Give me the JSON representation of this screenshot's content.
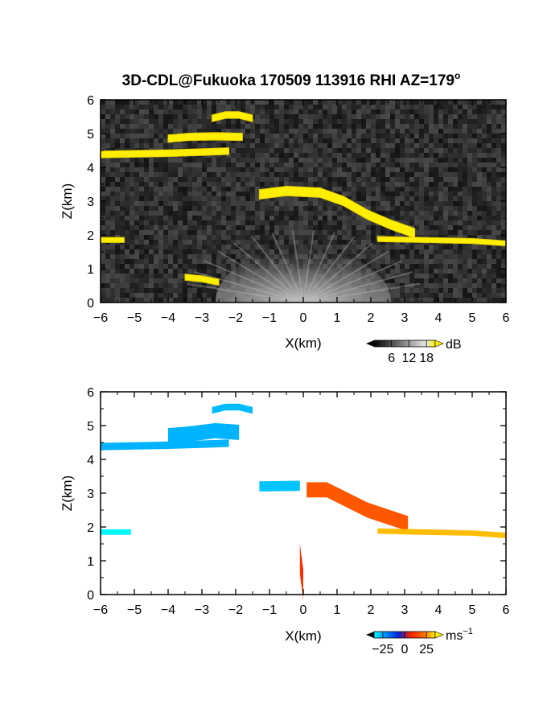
{
  "title": "3D-CDL@Fukuoka 170509 113916 RHI AZ=179",
  "title_superscript": "o",
  "chart_data": [
    {
      "type": "heatmap",
      "panel": "top",
      "xlabel": "X(km)",
      "ylabel": "Z(km)",
      "xlim": [
        -6,
        6
      ],
      "ylim": [
        0,
        6
      ],
      "xticks": [
        "-6",
        "-5",
        "-4",
        "-3",
        "-2",
        "-1",
        "0",
        "1",
        "2",
        "3",
        "4",
        "5",
        "6"
      ],
      "yticks": [
        "0",
        "1",
        "2",
        "3",
        "4",
        "5",
        "6"
      ],
      "background_color": "#2a2a2a",
      "highlight_color": "#ffee00",
      "colorbar": {
        "unit": "dB",
        "ticks": [
          "6",
          "12",
          "18"
        ],
        "range": [
          0,
          21
        ]
      },
      "layers": [
        {
          "points": [
            [
              -6,
              4.38
            ],
            [
              -5,
              4.4
            ],
            [
              -4,
              4.42
            ],
            [
              -3,
              4.45
            ],
            [
              -2.2,
              4.48
            ]
          ],
          "thickness": 0.2
        },
        {
          "points": [
            [
              -4,
              4.85
            ],
            [
              -3.4,
              4.9
            ],
            [
              -2.6,
              4.92
            ],
            [
              -1.8,
              4.9
            ]
          ],
          "thickness": 0.22
        },
        {
          "points": [
            [
              -2.7,
              5.45
            ],
            [
              -2.3,
              5.55
            ],
            [
              -1.9,
              5.55
            ],
            [
              -1.5,
              5.45
            ]
          ],
          "thickness": 0.2
        },
        {
          "points": [
            [
              -1.3,
              3.2
            ],
            [
              -0.5,
              3.3
            ],
            [
              0.5,
              3.25
            ],
            [
              1.2,
              3.0
            ],
            [
              1.9,
              2.6
            ],
            [
              2.6,
              2.3
            ],
            [
              3.3,
              2.05
            ]
          ],
          "thickness": 0.28
        },
        {
          "points": [
            [
              2.2,
              1.88
            ],
            [
              3.5,
              1.85
            ],
            [
              5,
              1.82
            ],
            [
              6,
              1.75
            ]
          ],
          "thickness": 0.15
        },
        {
          "points": [
            [
              -6,
              1.85
            ],
            [
              -5.3,
              1.85
            ]
          ],
          "thickness": 0.15
        },
        {
          "points": [
            [
              -3.5,
              0.75
            ],
            [
              -3.0,
              0.7
            ],
            [
              -2.5,
              0.6
            ]
          ],
          "thickness": 0.18
        }
      ]
    },
    {
      "type": "heatmap",
      "panel": "bottom",
      "xlabel": "X(km)",
      "ylabel": "Z(km)",
      "xlim": [
        -6,
        6
      ],
      "ylim": [
        0,
        6
      ],
      "xticks": [
        "-6",
        "-5",
        "-4",
        "-3",
        "-2",
        "-1",
        "0",
        "1",
        "2",
        "3",
        "4",
        "5",
        "6"
      ],
      "yticks": [
        "0",
        "1",
        "2",
        "3",
        "4",
        "5",
        "6"
      ],
      "colorbar": {
        "unit": "ms",
        "unit_superscript": "−1",
        "ticks": [
          "−25",
          "0",
          "25"
        ],
        "range": [
          -35,
          35
        ],
        "colors": [
          "#00ffff",
          "#0088ff",
          "#0022dd",
          "#ff2200",
          "#ff6600",
          "#ffee00"
        ]
      },
      "regions": [
        {
          "points": [
            [
              -6,
              4.38
            ],
            [
              -5,
              4.4
            ],
            [
              -4,
              4.42
            ],
            [
              -3,
              4.45
            ],
            [
              -2.2,
              4.48
            ]
          ],
          "thickness": 0.22,
          "velocity": -26
        },
        {
          "points": [
            [
              -4,
              4.7
            ],
            [
              -3.4,
              4.75
            ],
            [
              -2.6,
              4.85
            ],
            [
              -1.9,
              4.8
            ]
          ],
          "thickness": 0.45,
          "velocity": -26
        },
        {
          "points": [
            [
              -2.7,
              5.45
            ],
            [
              -2.3,
              5.55
            ],
            [
              -1.9,
              5.55
            ],
            [
              -1.5,
              5.45
            ]
          ],
          "thickness": 0.2,
          "velocity": -27
        },
        {
          "points": [
            [
              -1.3,
              3.2
            ],
            [
              -0.1,
              3.22
            ]
          ],
          "thickness": 0.3,
          "velocity": -28
        },
        {
          "points": [
            [
              0.1,
              3.1
            ],
            [
              0.7,
              3.1
            ],
            [
              1.3,
              2.8
            ],
            [
              1.9,
              2.5
            ],
            [
              2.5,
              2.3
            ],
            [
              3.1,
              2.1
            ]
          ],
          "thickness": 0.45,
          "velocity": 18
        },
        {
          "points": [
            [
              2.2,
              1.88
            ],
            [
              3.5,
              1.85
            ],
            [
              5,
              1.82
            ],
            [
              6,
              1.75
            ]
          ],
          "thickness": 0.16,
          "velocity": 30
        },
        {
          "points": [
            [
              -6,
              1.85
            ],
            [
              -5.1,
              1.85
            ]
          ],
          "thickness": 0.16,
          "velocity": -34
        },
        {
          "points": [
            [
              -0.1,
              1.05
            ],
            [
              0.0,
              0.3
            ]
          ],
          "thickness": 0.9,
          "velocity": 10
        }
      ]
    }
  ]
}
